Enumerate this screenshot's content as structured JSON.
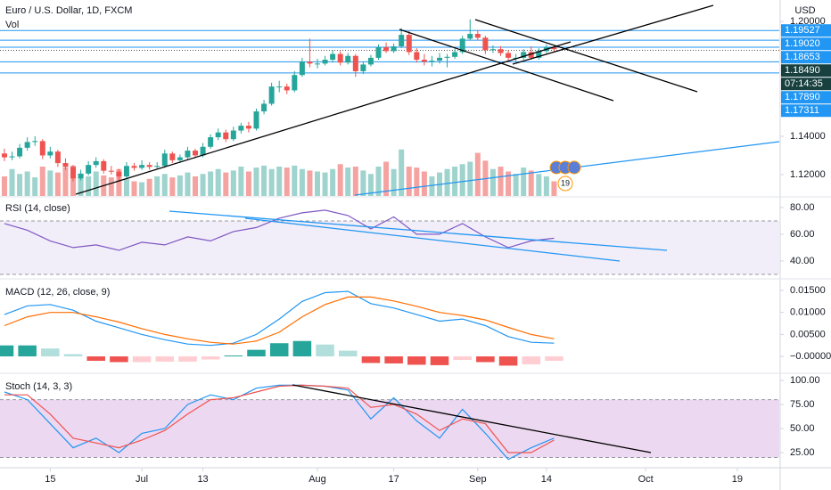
{
  "chart_data": [
    {
      "type": "candlestick",
      "title": "Euro / U.S. Dollar, 1D, FXCM",
      "subtitle": "Vol",
      "currency": "USD",
      "event_badge": "19",
      "up_color": "#26a69a",
      "down_color": "#ef5350",
      "volume_up_color": "#9fd3cd",
      "volume_down_color": "#f5a3a1",
      "xlim": [
        -0.58,
        101.5
      ],
      "xticks": [
        {
          "value": 6,
          "label": "15"
        },
        {
          "value": 18,
          "label": "Jul"
        },
        {
          "value": 26,
          "label": "13"
        },
        {
          "value": 41,
          "label": "Aug"
        },
        {
          "value": 51,
          "label": "17"
        },
        {
          "value": 62,
          "label": "Sep"
        },
        {
          "value": 71,
          "label": "14"
        },
        {
          "value": 84,
          "label": "Oct"
        },
        {
          "value": 96,
          "label": "19"
        }
      ],
      "ylim": [
        1.1088,
        1.2112
      ],
      "yticks": [
        {
          "value": 1.2,
          "label": "1.20000"
        },
        {
          "value": 1.14,
          "label": "1.14000"
        },
        {
          "value": 1.12,
          "label": "1.12000"
        }
      ],
      "levels": [
        1.19527,
        {
          "value": 1.1902,
          "label": "1.19020"
        },
        1.18653,
        {
          "value": 1.1789,
          "label": "1.17890"
        },
        1.17311
      ],
      "level_color": "#2196f3",
      "price": {
        "value": 1.1849,
        "label": "1.18490"
      },
      "price_color": "#17403f",
      "countdown": "07:14:35",
      "volume_ylim": [
        0,
        400
      ],
      "volume": [
        40,
        55,
        45,
        50,
        38,
        60,
        52,
        48,
        58,
        62,
        45,
        40,
        50,
        42,
        38,
        55,
        35,
        30,
        28,
        35,
        40,
        45,
        38,
        42,
        48,
        40,
        45,
        50,
        55,
        48,
        52,
        60,
        50,
        58,
        62,
        55,
        60,
        58,
        62,
        55,
        52,
        50,
        48,
        55,
        65,
        58,
        60,
        52,
        45,
        60,
        70,
        55,
        95,
        60,
        58,
        50,
        40,
        48,
        55,
        60,
        65,
        70,
        88,
        72,
        55,
        60,
        50,
        45,
        58,
        52,
        45,
        40,
        30
      ],
      "ohlc": [
        [
          1.131,
          1.1335,
          1.127,
          1.129
        ],
        [
          1.129,
          1.132,
          1.1275,
          1.1295
        ],
        [
          1.1295,
          1.136,
          1.1285,
          1.134
        ],
        [
          1.134,
          1.1395,
          1.1325,
          1.137
        ],
        [
          1.137,
          1.14,
          1.135,
          1.1375
        ],
        [
          1.1375,
          1.1385,
          1.128,
          1.13
        ],
        [
          1.13,
          1.1345,
          1.1285,
          1.132
        ],
        [
          1.132,
          1.133,
          1.124,
          1.126
        ],
        [
          1.126,
          1.1285,
          1.1225,
          1.124
        ],
        [
          1.124,
          1.125,
          1.1165,
          1.118
        ],
        [
          1.118,
          1.1225,
          1.117,
          1.1205
        ],
        [
          1.1205,
          1.127,
          1.1195,
          1.125
        ],
        [
          1.125,
          1.129,
          1.1235,
          1.127
        ],
        [
          1.127,
          1.128,
          1.1205,
          1.122
        ],
        [
          1.122,
          1.1245,
          1.12,
          1.1215
        ],
        [
          1.1215,
          1.123,
          1.117,
          1.119
        ],
        [
          1.119,
          1.1265,
          1.118,
          1.1245
        ],
        [
          1.1245,
          1.126,
          1.122,
          1.1235
        ],
        [
          1.1235,
          1.1275,
          1.1225,
          1.125
        ],
        [
          1.125,
          1.1265,
          1.1225,
          1.124
        ],
        [
          1.124,
          1.1265,
          1.123,
          1.1245
        ],
        [
          1.1245,
          1.133,
          1.1235,
          1.131
        ],
        [
          1.131,
          1.132,
          1.126,
          1.1275
        ],
        [
          1.1275,
          1.1305,
          1.126,
          1.129
        ],
        [
          1.129,
          1.1345,
          1.128,
          1.1325
        ],
        [
          1.1325,
          1.1335,
          1.1285,
          1.13
        ],
        [
          1.13,
          1.1365,
          1.129,
          1.1345
        ],
        [
          1.1345,
          1.141,
          1.1335,
          1.1395
        ],
        [
          1.1395,
          1.144,
          1.138,
          1.142
        ],
        [
          1.142,
          1.1435,
          1.137,
          1.1385
        ],
        [
          1.1385,
          1.145,
          1.1375,
          1.143
        ],
        [
          1.143,
          1.147,
          1.1415,
          1.1455
        ],
        [
          1.1455,
          1.1475,
          1.142,
          1.144
        ],
        [
          1.144,
          1.1545,
          1.143,
          1.153
        ],
        [
          1.153,
          1.159,
          1.1515,
          1.157
        ],
        [
          1.157,
          1.168,
          1.156,
          1.166
        ],
        [
          1.166,
          1.169,
          1.163,
          1.166
        ],
        [
          1.166,
          1.1675,
          1.162,
          1.164
        ],
        [
          1.164,
          1.174,
          1.163,
          1.172
        ],
        [
          1.172,
          1.181,
          1.171,
          1.179
        ],
        [
          1.179,
          1.191,
          1.176,
          1.178
        ],
        [
          1.178,
          1.1805,
          1.1755,
          1.178
        ],
        [
          1.178,
          1.182,
          1.177,
          1.18
        ],
        [
          1.18,
          1.185,
          1.1785,
          1.183
        ],
        [
          1.183,
          1.1845,
          1.177,
          1.1785
        ],
        [
          1.1785,
          1.1835,
          1.1775,
          1.182
        ],
        [
          1.182,
          1.183,
          1.171,
          1.174
        ],
        [
          1.174,
          1.179,
          1.1725,
          1.1775
        ],
        [
          1.1775,
          1.1825,
          1.1765,
          1.181
        ],
        [
          1.181,
          1.188,
          1.18,
          1.1865
        ],
        [
          1.1865,
          1.189,
          1.1835,
          1.1845
        ],
        [
          1.1845,
          1.1885,
          1.1835,
          1.187
        ],
        [
          1.187,
          1.1965,
          1.186,
          1.193
        ],
        [
          1.193,
          1.195,
          1.1825,
          1.184
        ],
        [
          1.184,
          1.186,
          1.1785,
          1.18
        ],
        [
          1.18,
          1.183,
          1.177,
          1.179
        ],
        [
          1.179,
          1.182,
          1.1765,
          1.1795
        ],
        [
          1.1795,
          1.1835,
          1.178,
          1.181
        ],
        [
          1.181,
          1.183,
          1.176,
          1.1815
        ],
        [
          1.1815,
          1.186,
          1.1805,
          1.184
        ],
        [
          1.184,
          1.1925,
          1.183,
          1.191
        ],
        [
          1.191,
          1.2011,
          1.19,
          1.1935
        ],
        [
          1.1935,
          1.1955,
          1.19,
          1.1915
        ],
        [
          1.1915,
          1.1925,
          1.183,
          1.185
        ],
        [
          1.185,
          1.1875,
          1.1835,
          1.1855
        ],
        [
          1.1855,
          1.187,
          1.182,
          1.1835
        ],
        [
          1.1835,
          1.185,
          1.179,
          1.181
        ],
        [
          1.181,
          1.183,
          1.179,
          1.181
        ],
        [
          1.181,
          1.1855,
          1.18,
          1.184
        ],
        [
          1.184,
          1.187,
          1.18,
          1.181
        ],
        [
          1.181,
          1.186,
          1.18,
          1.1845
        ],
        [
          1.1845,
          1.188,
          1.1835,
          1.1865
        ],
        [
          1.1865,
          1.187,
          1.184,
          1.1855
        ]
      ]
    },
    {
      "type": "line",
      "title": "RSI (14, close)",
      "x": [
        0,
        3,
        6,
        9,
        12,
        15,
        18,
        21,
        24,
        27,
        30,
        33,
        36,
        39,
        42,
        45,
        48,
        51,
        54,
        57,
        60,
        63,
        66,
        69,
        72
      ],
      "series": [
        {
          "color": "#7e57c2",
          "values": [
            68,
            63,
            55,
            50,
            52,
            48,
            54,
            52,
            58,
            55,
            62,
            65,
            72,
            76,
            78,
            74,
            64,
            73,
            60,
            60,
            68,
            58,
            50,
            55,
            57
          ]
        }
      ],
      "ylim": [
        27.3,
        87.3
      ],
      "yticks": [
        {
          "value": 80,
          "label": "80.00"
        },
        {
          "value": 60,
          "label": "60.00"
        },
        {
          "value": 40,
          "label": "40.00"
        }
      ],
      "band": [
        30,
        70
      ],
      "band_color": "rgba(126,87,194,0.1)"
    },
    {
      "type": "macd",
      "title": "MACD (12, 26, close, 9)",
      "x": [
        0,
        3,
        6,
        9,
        12,
        15,
        18,
        21,
        24,
        27,
        30,
        33,
        36,
        39,
        42,
        45,
        48,
        51,
        54,
        57,
        60,
        63,
        66,
        69,
        72
      ],
      "series": [
        {
          "color": "#2196f3",
          "values": [
            0.0095,
            0.0115,
            0.0118,
            0.0105,
            0.008,
            0.0065,
            0.005,
            0.0038,
            0.0028,
            0.0025,
            0.003,
            0.005,
            0.0085,
            0.0125,
            0.0145,
            0.0148,
            0.012,
            0.011,
            0.0095,
            0.008,
            0.0085,
            0.007,
            0.0045,
            0.0032,
            0.003
          ]
        },
        {
          "color": "#ff6d00",
          "values": [
            0.007,
            0.009,
            0.01,
            0.01,
            0.009,
            0.0078,
            0.0063,
            0.005,
            0.004,
            0.0032,
            0.0028,
            0.0035,
            0.0055,
            0.009,
            0.0118,
            0.0135,
            0.0135,
            0.0126,
            0.0114,
            0.01,
            0.0093,
            0.0083,
            0.0066,
            0.005,
            0.004
          ]
        }
      ],
      "histogram": [
        0.0025,
        0.0025,
        0.0018,
        0.0005,
        -0.001,
        -0.0013,
        -0.0013,
        -0.0012,
        -0.0012,
        -0.0007,
        0.0002,
        0.0015,
        0.003,
        0.0035,
        0.0027,
        0.0013,
        -0.0015,
        -0.0016,
        -0.0019,
        -0.002,
        -0.0008,
        -0.0013,
        -0.0021,
        -0.0018,
        -0.001
      ],
      "histogram_colors": [
        "#26a69a",
        "#b2dfdb",
        "#ffcdd2",
        "#ef5350"
      ],
      "ylim": [
        -0.00364,
        0.01743
      ],
      "yticks": [
        {
          "value": 0.015,
          "label": "0.01500"
        },
        {
          "value": 0.01,
          "label": "0.01000"
        },
        {
          "value": 0.005,
          "label": "0.00500"
        },
        {
          "value": 0,
          "label": "−0.00000"
        }
      ]
    },
    {
      "type": "line",
      "title": "Stoch (14, 3, 3)",
      "x": [
        0,
        3,
        6,
        9,
        12,
        15,
        18,
        21,
        24,
        27,
        30,
        33,
        36,
        39,
        42,
        45,
        48,
        51,
        54,
        57,
        60,
        63,
        66,
        69,
        72
      ],
      "series": [
        {
          "color": "#2196f3",
          "values": [
            88,
            80,
            55,
            30,
            40,
            25,
            45,
            50,
            75,
            85,
            80,
            92,
            95,
            95,
            94,
            90,
            60,
            82,
            58,
            40,
            70,
            45,
            18,
            30,
            40
          ]
        },
        {
          "color": "#ef5350",
          "values": [
            85,
            85,
            65,
            40,
            35,
            30,
            38,
            48,
            65,
            80,
            82,
            88,
            94,
            95,
            94,
            92,
            72,
            75,
            65,
            48,
            60,
            55,
            25,
            25,
            38
          ]
        }
      ],
      "ylim": [
        9.3,
        106.5
      ],
      "yticks": [
        {
          "value": 100,
          "label": "100.00"
        },
        {
          "value": 75,
          "label": "75.00"
        },
        {
          "value": 50,
          "label": "50.00"
        },
        {
          "value": 25,
          "label": "25.00"
        }
      ],
      "band": [
        20,
        80
      ],
      "band_color": "rgba(156,39,176,0.18)"
    }
  ]
}
